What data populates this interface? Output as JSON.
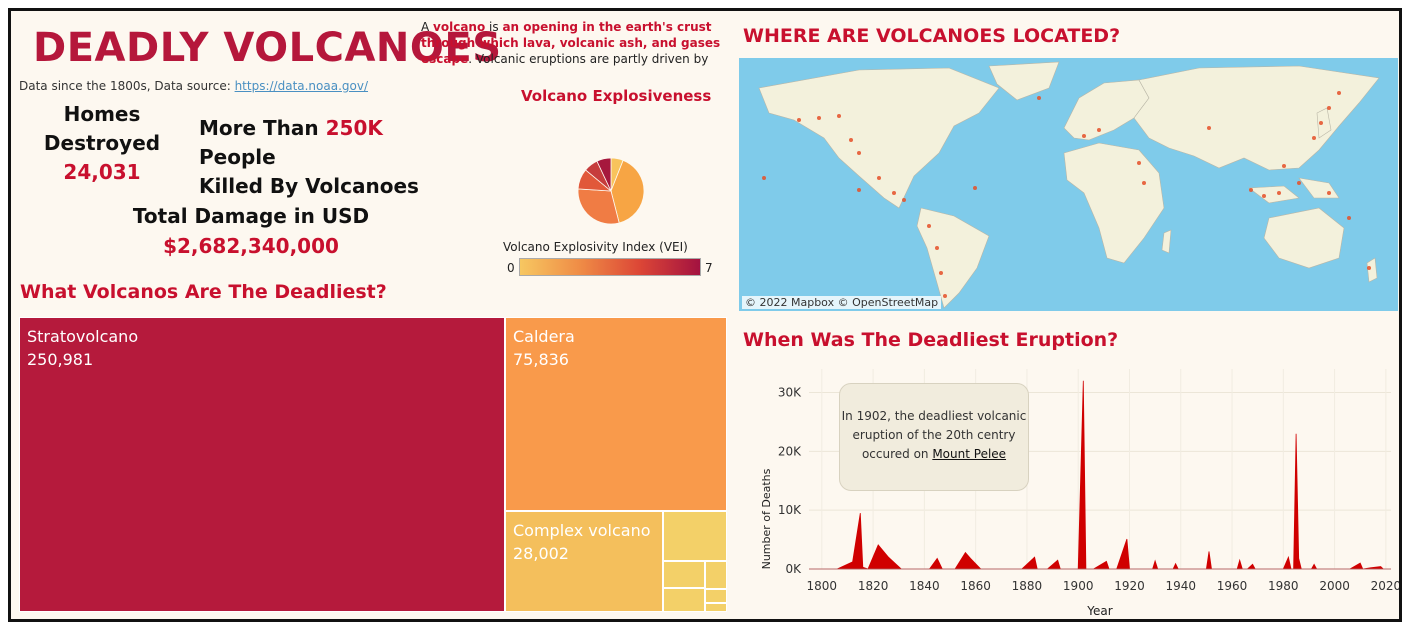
{
  "header": {
    "title": "DEADLY VOLCANOES",
    "source_prefix": "Data since the 1800s, Data source:",
    "source_link": "https://data.noaa.gov/",
    "intro_a": "A ",
    "intro_b": "volcano",
    "intro_c": " is ",
    "intro_d": "an opening in the earth's crust through which lava, volcanic ash, and gases escape",
    "intro_e": ". Volcanic eruptions are partly driven by pressure from dissolved .."
  },
  "kpis": {
    "homes_line1": "Homes",
    "homes_line2": "Destroyed",
    "homes_value": "24,031",
    "killed_a": "More Than ",
    "killed_b": "250K",
    "killed_c": " People",
    "killed_line2": "Killed By Volcanoes",
    "damage_label": "Total Damage in USD",
    "damage_value": "$2,682,340,000"
  },
  "pie": {
    "title": "Volcano Explosiveness",
    "legend_title": "Volcano Explosivity Index (VEI)",
    "legend_min": "0",
    "legend_max": "7"
  },
  "sections": {
    "treemap_title": "What Volcanos Are The Deadliest?",
    "map_title": "WHERE ARE VOLCANOES LOCATED?",
    "timeline_title": "When Was The Deadliest Eruption?",
    "map_attribution": "© 2022 Mapbox © OpenStreetMap"
  },
  "annotation": {
    "line1": "In 1902, the deadliest volcanic",
    "line2": "eruption of the 20th centry",
    "line3": "occured on ",
    "link": "Mount Pelee"
  },
  "colors": {
    "accent": "#c8102e",
    "strato": "#b51a3c",
    "caldera": "#f99a4b",
    "complex": "#f4bf5c",
    "small": "#f3d068",
    "map_water": "#7fcbea",
    "map_land": "#f3f1dc",
    "area": "#d00000"
  },
  "chart_data": [
    {
      "type": "pie",
      "title": "Volcano Explosiveness",
      "legend_title": "Volcano Explosivity Index (VEI)",
      "color_range": [
        0,
        7
      ],
      "slices": [
        {
          "vei": 1,
          "share": 0.06,
          "color": "#f8c35c"
        },
        {
          "vei": 2,
          "share": 0.4,
          "color": "#f7a544"
        },
        {
          "vei": 3,
          "share": 0.3,
          "color": "#f07c44"
        },
        {
          "vei": 4,
          "share": 0.1,
          "color": "#e1583a"
        },
        {
          "vei": 5,
          "share": 0.07,
          "color": "#c63c3c"
        },
        {
          "vei": 6,
          "share": 0.07,
          "color": "#a6183d"
        }
      ]
    },
    {
      "type": "treemap",
      "title": "What Volcanos Are The Deadliest?",
      "items": [
        {
          "label": "Stratovolcano",
          "value": 250981,
          "display": "250,981"
        },
        {
          "label": "Caldera",
          "value": 75836,
          "display": "75,836"
        },
        {
          "label": "Complex volcano",
          "value": 28002,
          "display": "28,002"
        },
        {
          "label": "",
          "value": 7000
        },
        {
          "label": "",
          "value": 2600
        },
        {
          "label": "",
          "value": 900
        },
        {
          "label": "",
          "value": 700
        },
        {
          "label": "",
          "value": 400
        },
        {
          "label": "",
          "value": 200
        }
      ]
    },
    {
      "type": "area",
      "title": "When Was The Deadliest Eruption?",
      "xlabel": "Year",
      "ylabel": "Number of Deaths",
      "xlim": [
        1795,
        2022
      ],
      "ylim": [
        0,
        34000
      ],
      "x_ticks": [
        1800,
        1820,
        1840,
        1860,
        1880,
        1900,
        1920,
        1940,
        1960,
        1980,
        2000,
        2020
      ],
      "y_ticks": [
        {
          "v": 0,
          "label": "0K"
        },
        {
          "v": 10000,
          "label": "10K"
        },
        {
          "v": 20000,
          "label": "20K"
        },
        {
          "v": 30000,
          "label": "30K"
        }
      ],
      "points": [
        [
          1795,
          0
        ],
        [
          1800,
          0
        ],
        [
          1806,
          0
        ],
        [
          1812,
          1200
        ],
        [
          1815,
          9500
        ],
        [
          1816,
          300
        ],
        [
          1818,
          0
        ],
        [
          1822,
          4100
        ],
        [
          1826,
          2000
        ],
        [
          1831,
          0
        ],
        [
          1836,
          0
        ],
        [
          1840,
          0
        ],
        [
          1842,
          0
        ],
        [
          1845,
          1800
        ],
        [
          1847,
          0
        ],
        [
          1852,
          0
        ],
        [
          1856,
          2800
        ],
        [
          1858,
          1800
        ],
        [
          1862,
          0
        ],
        [
          1870,
          0
        ],
        [
          1878,
          0
        ],
        [
          1883,
          2000
        ],
        [
          1884,
          0
        ],
        [
          1888,
          0
        ],
        [
          1892,
          1500
        ],
        [
          1893,
          0
        ],
        [
          1897,
          0
        ],
        [
          1900,
          0
        ],
        [
          1902,
          32000
        ],
        [
          1903,
          0
        ],
        [
          1906,
          0
        ],
        [
          1911,
          1300
        ],
        [
          1912,
          0
        ],
        [
          1915,
          0
        ],
        [
          1919,
          5100
        ],
        [
          1920,
          0
        ],
        [
          1929,
          0
        ],
        [
          1930,
          1400
        ],
        [
          1931,
          0
        ],
        [
          1937,
          0
        ],
        [
          1938,
          900
        ],
        [
          1939,
          0
        ],
        [
          1950,
          0
        ],
        [
          1951,
          3000
        ],
        [
          1952,
          0
        ],
        [
          1962,
          0
        ],
        [
          1963,
          1500
        ],
        [
          1964,
          0
        ],
        [
          1966,
          0
        ],
        [
          1968,
          800
        ],
        [
          1969,
          0
        ],
        [
          1980,
          0
        ],
        [
          1982,
          2000
        ],
        [
          1983,
          0
        ],
        [
          1984,
          0
        ],
        [
          1985,
          23000
        ],
        [
          1986,
          1800
        ],
        [
          1987,
          0
        ],
        [
          1991,
          0
        ],
        [
          1992,
          800
        ],
        [
          1993,
          0
        ],
        [
          2002,
          0
        ],
        [
          2006,
          0
        ],
        [
          2010,
          1000
        ],
        [
          2011,
          0
        ],
        [
          2014,
          200
        ],
        [
          2018,
          400
        ],
        [
          2019,
          0
        ],
        [
          2022,
          0
        ]
      ]
    }
  ]
}
